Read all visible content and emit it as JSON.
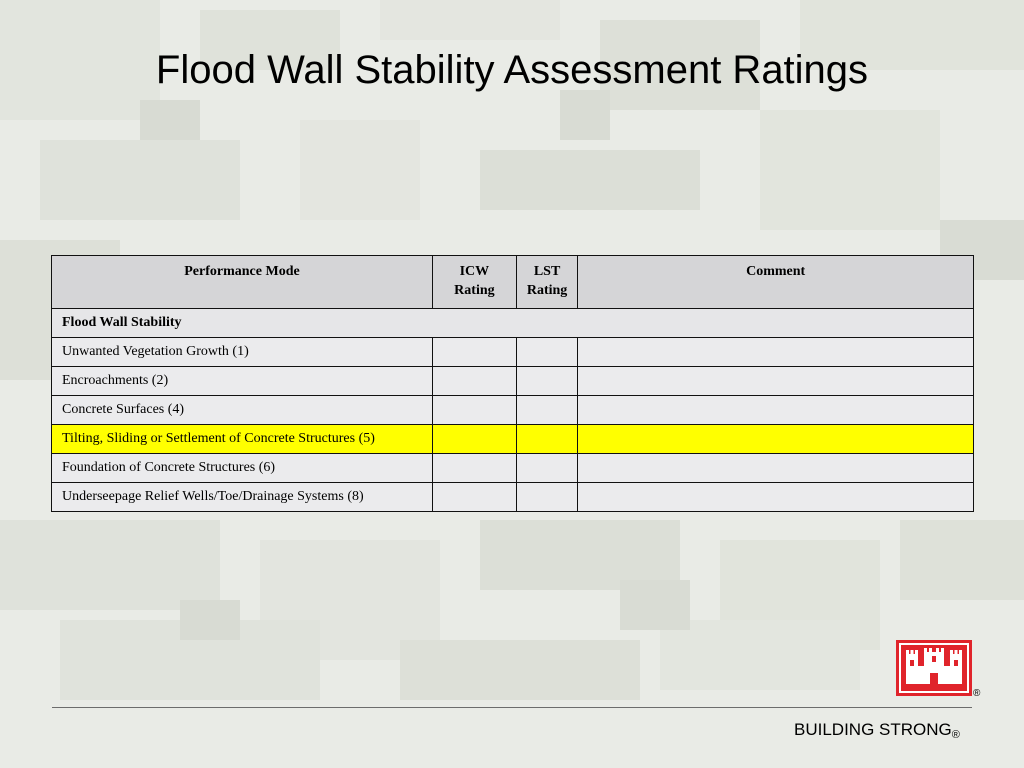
{
  "slide": {
    "title": "Flood Wall Stability Assessment Ratings"
  },
  "table": {
    "headers": {
      "performance_mode": "Performance Mode",
      "icw_line1": "ICW",
      "icw_line2": "Rating",
      "lst_line1": "LST",
      "lst_line2": "Rating",
      "comment": "Comment"
    },
    "section": "Flood Wall  Stability",
    "rows": [
      {
        "mode": "Unwanted Vegetation Growth (1)",
        "icw": "",
        "lst": "",
        "comment": "",
        "highlighted": false
      },
      {
        "mode": "Encroachments (2)",
        "icw": "",
        "lst": "",
        "comment": "",
        "highlighted": false
      },
      {
        "mode": "Concrete Surfaces (4)",
        "icw": "",
        "lst": "",
        "comment": "",
        "highlighted": false
      },
      {
        "mode": "Tilting, Sliding or Settlement of Concrete Structures (5)",
        "icw": "",
        "lst": "",
        "comment": "",
        "highlighted": true
      },
      {
        "mode": "Foundation of Concrete Structures (6)",
        "icw": "",
        "lst": "",
        "comment": "",
        "highlighted": false
      },
      {
        "mode": "Underseepage Relief Wells/Toe/Drainage Systems (8)",
        "icw": "",
        "lst": "",
        "comment": "",
        "highlighted": false
      }
    ]
  },
  "footer": {
    "tagline": "BUILDING STRONG",
    "registered": "®",
    "logo_registered": "®"
  },
  "colors": {
    "highlight": "#ffff00",
    "header_bg": "#d5d5d7",
    "logo_red": "#e0242b"
  }
}
